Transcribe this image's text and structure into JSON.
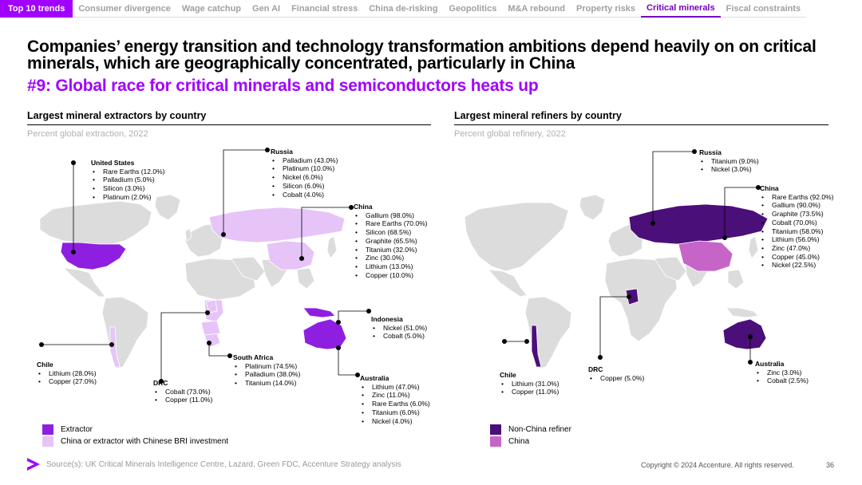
{
  "tabs": {
    "first": "Top 10 trends",
    "items": [
      "Consumer divergence",
      "Wage catchup",
      "Gen AI",
      "Financial stress",
      "China de-risking",
      "Geopolitics",
      "M&A rebound",
      "Property risks",
      "Critical minerals",
      "Fiscal constraints"
    ],
    "active_index": 8
  },
  "headline": "Companies’ energy transition and technology transformation ambitions depend heavily on on critical minerals, which are geographically concentrated, particularly in China",
  "subheadline": "#9: Global race for critical minerals and semiconductors heats up",
  "colors": {
    "accent": "#a100ff",
    "extractor": "#8f1fe0",
    "bri": "#e6c4f7",
    "non_china_refiner": "#4b0f7a",
    "china_refiner": "#c764c8",
    "land": "#dcdcdc"
  },
  "left_panel": {
    "title": "Largest mineral extractors by country",
    "subtitle": "Percent global extraction, 2022",
    "legend": [
      "Extractor",
      "China or extractor with Chinese BRI investment"
    ],
    "callouts": {
      "us": {
        "name": "United States",
        "items": [
          "Rare Earths (12.0%)",
          "Palladium (5.0%)",
          "Silicon (3.0%)",
          "Platinum (2.0%)"
        ]
      },
      "russia": {
        "name": "Russia",
        "items": [
          "Palladium (43.0%)",
          "Platinum (10.0%)",
          "Nickel (6.0%)",
          "Silicon (6.0%)",
          "Cobalt (4.0%)"
        ]
      },
      "china": {
        "name": "China",
        "items": [
          "Gallium (98.0%)",
          "Rare Earths (70.0%)",
          "Silicon (68.5%)",
          "Graphite (65.5%)",
          "Titanium (32.0%)",
          "Zinc (30.0%)",
          "Lithium (13.0%)",
          "Copper (10.0%)"
        ]
      },
      "indonesia": {
        "name": "Indonesia",
        "items": [
          "Nickel (51.0%)",
          "Cobalt (5.0%)"
        ]
      },
      "chile": {
        "name": "Chile",
        "items": [
          "Lithium (28.0%)",
          "Copper (27.0%)"
        ]
      },
      "drc": {
        "name": "DRC",
        "items": [
          "Cobalt (73.0%)",
          "Copper (11.0%)"
        ]
      },
      "south_africa": {
        "name": "South Africa",
        "items": [
          "Platinum (74.5%)",
          "Palladium (38.0%)",
          "Titanium (14.0%)"
        ]
      },
      "australia": {
        "name": "Australia",
        "items": [
          "Lithium (47.0%)",
          "Zinc (11.0%)",
          "Rare Earths (6.0%)",
          "Titanium (6.0%)",
          "Nickel (4.0%)"
        ]
      }
    }
  },
  "right_panel": {
    "title": "Largest mineral refiners by country",
    "subtitle": "Percent global refinery, 2022",
    "legend": [
      "Non-China refiner",
      "China"
    ],
    "callouts": {
      "russia": {
        "name": "Russia",
        "items": [
          "Titanium (9.0%)",
          "Nickel (3.0%)"
        ]
      },
      "china": {
        "name": "China",
        "items": [
          "Rare Earths (92.0%)",
          "Gallium (90.0%)",
          "Graphite (73.5%)",
          "Cobalt (70.0%)",
          "Titanium (58.0%)",
          "Lithium (56.0%)",
          "Zinc (47.0%)",
          "Copper (45.0%)",
          "Nickel (22.5%)"
        ]
      },
      "chile": {
        "name": "Chile",
        "items": [
          "Lithium (31.0%)",
          "Copper (11.0%)"
        ]
      },
      "drc": {
        "name": "DRC",
        "items": [
          "Copper (5.0%)"
        ]
      },
      "australia": {
        "name": "Australia",
        "items": [
          "Zinc (3.0%)",
          "Cobalt (2.5%)"
        ]
      }
    }
  },
  "footer": {
    "source": "Source(s): UK Critical Minerals Intelligence Centre, Lazard, Green FDC, Accenture Strategy analysis",
    "copyright": "Copyright © 2024 Accenture. All rights reserved.",
    "page_number": "36"
  }
}
